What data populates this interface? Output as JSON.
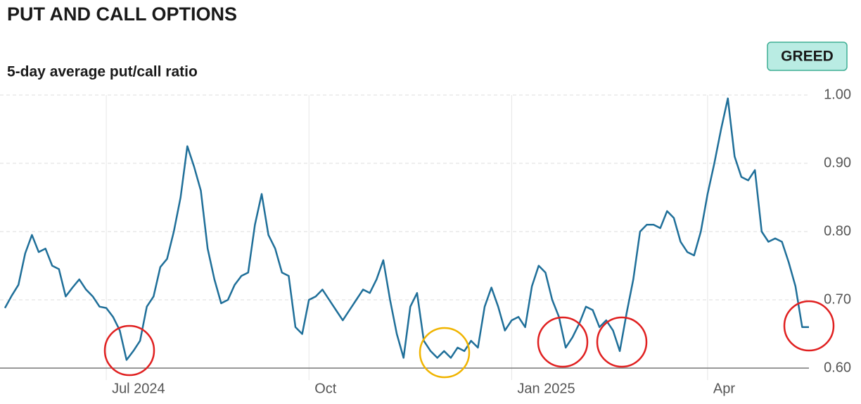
{
  "chart_data": {
    "type": "line",
    "title": "PUT AND CALL OPTIONS",
    "subtitle": "5-day average put/call ratio",
    "badge": "GREED",
    "color": "#1f6f99",
    "categories": [
      null,
      null,
      null,
      null,
      null,
      null,
      null,
      null,
      null,
      null,
      null,
      null,
      null,
      null,
      null,
      "Jul 2024",
      null,
      null,
      null,
      null,
      null,
      null,
      null,
      null,
      null,
      null,
      null,
      null,
      null,
      null,
      null,
      null,
      null,
      null,
      null,
      null,
      null,
      null,
      null,
      null,
      null,
      null,
      null,
      null,
      null,
      "Oct",
      null,
      null,
      null,
      null,
      null,
      null,
      null,
      null,
      null,
      null,
      null,
      null,
      null,
      null,
      null,
      null,
      null,
      null,
      null,
      null,
      null,
      null,
      null,
      null,
      null,
      null,
      null,
      null,
      null,
      "Jan 2025",
      null,
      null,
      null,
      null,
      null,
      null,
      null,
      null,
      null,
      null,
      null,
      null,
      null,
      null,
      null,
      null,
      null,
      null,
      null,
      null,
      null,
      null,
      null,
      null,
      null,
      null,
      null,
      null,
      "Apr",
      null,
      null,
      null,
      null,
      null,
      null,
      null,
      null,
      null,
      null,
      null,
      null,
      null,
      null,
      null
    ],
    "values": [
      0.688,
      0.706,
      0.722,
      0.768,
      0.795,
      0.77,
      0.775,
      0.75,
      0.745,
      0.705,
      0.718,
      0.73,
      0.715,
      0.705,
      0.69,
      0.688,
      0.675,
      0.655,
      0.612,
      0.625,
      0.64,
      0.69,
      0.705,
      0.748,
      0.76,
      0.8,
      0.85,
      0.925,
      0.895,
      0.86,
      0.775,
      0.73,
      0.695,
      0.7,
      0.722,
      0.735,
      0.74,
      0.81,
      0.855,
      0.795,
      0.775,
      0.74,
      0.735,
      0.66,
      0.65,
      0.7,
      0.705,
      0.715,
      0.7,
      0.685,
      0.67,
      0.685,
      0.7,
      0.715,
      0.71,
      0.73,
      0.758,
      0.7,
      0.65,
      0.615,
      0.69,
      0.71,
      0.64,
      0.625,
      0.615,
      0.625,
      0.615,
      0.63,
      0.625,
      0.64,
      0.63,
      0.69,
      0.718,
      0.69,
      0.655,
      0.67,
      0.675,
      0.66,
      0.72,
      0.75,
      0.74,
      0.7,
      0.675,
      0.63,
      0.645,
      0.665,
      0.69,
      0.685,
      0.66,
      0.67,
      0.655,
      0.625,
      0.68,
      0.73,
      0.8,
      0.81,
      0.81,
      0.805,
      0.83,
      0.82,
      0.785,
      0.77,
      0.765,
      0.8,
      0.855,
      0.9,
      0.95,
      0.995,
      0.91,
      0.88,
      0.875,
      0.89,
      0.8,
      0.785,
      0.79,
      0.785,
      0.755,
      0.72,
      0.66,
      0.66
    ],
    "ylim": [
      0.6,
      1.0
    ],
    "yticks": [
      {
        "value": 0.6,
        "label": "0.60"
      },
      {
        "value": 0.7,
        "label": "0.70"
      },
      {
        "value": 0.8,
        "label": "0.80"
      },
      {
        "value": 0.9,
        "label": "0.90"
      },
      {
        "value": 1.0,
        "label": "1.00"
      }
    ],
    "grid": true
  }
}
